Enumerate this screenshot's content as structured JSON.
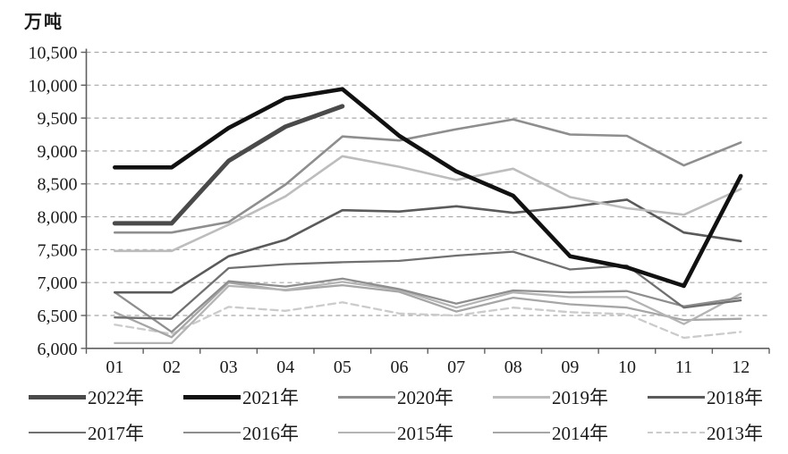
{
  "chart_data": {
    "type": "line",
    "title": "",
    "ylabel": "万吨",
    "xlabel": "",
    "x": [
      "01",
      "02",
      "03",
      "04",
      "05",
      "06",
      "07",
      "08",
      "09",
      "10",
      "11",
      "12"
    ],
    "ylim": [
      6000,
      10500
    ],
    "y_tick_step": 500,
    "y_tick_values": [
      10500,
      10000,
      9500,
      9000,
      8500,
      8000,
      7500,
      7000,
      6500,
      6000
    ],
    "y_tick_labels": [
      "10,500",
      "10,000",
      "9,500",
      "9,000",
      "8,500",
      "8,000",
      "7,500",
      "7,000",
      "6,500",
      "6,000"
    ],
    "grid": "horizontal-dashed",
    "legend_position": "bottom-two-rows",
    "series": [
      {
        "name": "2022年",
        "color": "#4a4a4a",
        "width": 5,
        "dash": null,
        "values": [
          7900,
          7900,
          8850,
          9370,
          9680,
          null,
          null,
          null,
          null,
          null,
          null,
          null
        ]
      },
      {
        "name": "2021年",
        "color": "#111111",
        "width": 4.6,
        "dash": null,
        "values": [
          8750,
          8750,
          9350,
          9800,
          9940,
          9230,
          8690,
          8320,
          7400,
          7230,
          6950,
          8620
        ]
      },
      {
        "name": "2020年",
        "color": "#8e8e8e",
        "width": 2.6,
        "dash": null,
        "values": [
          7760,
          7760,
          7920,
          8490,
          9220,
          9160,
          9330,
          9480,
          9250,
          9230,
          8780,
          9130
        ]
      },
      {
        "name": "2019年",
        "color": "#bdbdbd",
        "width": 2.6,
        "dash": null,
        "values": [
          7480,
          7480,
          7880,
          8310,
          8920,
          8760,
          8560,
          8730,
          8300,
          8130,
          8030,
          8420
        ]
      },
      {
        "name": "2018年",
        "color": "#5a5a5a",
        "width": 2.6,
        "dash": null,
        "values": [
          6850,
          6850,
          7400,
          7650,
          8100,
          8080,
          8160,
          8060,
          8150,
          8260,
          7760,
          7630
        ]
      },
      {
        "name": "2017年",
        "color": "#707070",
        "width": 2.3,
        "dash": null,
        "values": [
          6470,
          6450,
          7220,
          7280,
          7310,
          7330,
          7410,
          7470,
          7200,
          7260,
          6620,
          6730
        ]
      },
      {
        "name": "2016年",
        "color": "#8e8e8e",
        "width": 2.3,
        "dash": null,
        "values": [
          6850,
          6250,
          7020,
          6940,
          7060,
          6900,
          6680,
          6880,
          6850,
          6870,
          6640,
          6770
        ]
      },
      {
        "name": "2015年",
        "color": "#b4b4b4",
        "width": 2.3,
        "dash": null,
        "values": [
          6080,
          6080,
          6950,
          6890,
          7010,
          6890,
          6620,
          6850,
          6780,
          6780,
          6370,
          6830
        ]
      },
      {
        "name": "2014年",
        "color": "#a6a6a6",
        "width": 2.3,
        "dash": null,
        "values": [
          6550,
          6170,
          7000,
          6880,
          6960,
          6860,
          6560,
          6770,
          6670,
          6620,
          6430,
          6450
        ]
      },
      {
        "name": "2013年",
        "color": "#cbcbcb",
        "width": 2.3,
        "dash": "8 5",
        "values": [
          6360,
          6220,
          6630,
          6570,
          6700,
          6530,
          6500,
          6620,
          6550,
          6520,
          6160,
          6250
        ]
      }
    ]
  },
  "style": {
    "grid_color": "#a8a8a8",
    "axis_color": "#5f5f5f",
    "tick_label_color": "#1a1a1a"
  }
}
